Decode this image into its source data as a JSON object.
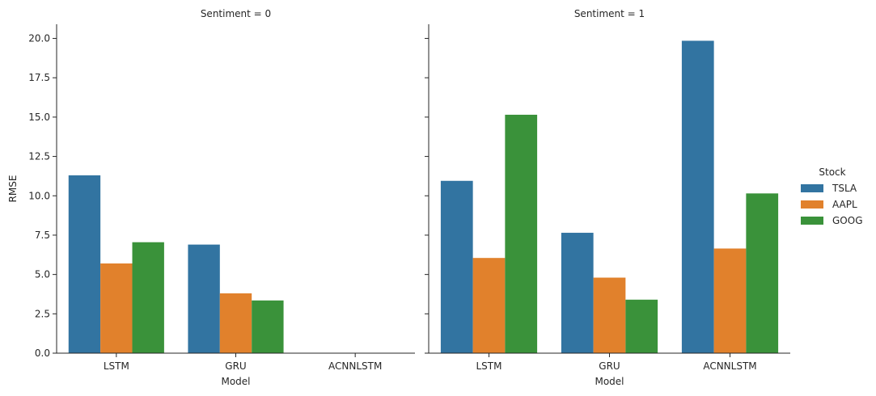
{
  "chart_data": {
    "type": "bar",
    "ylabel": "RMSE",
    "ylim": [
      0,
      20.9
    ],
    "yticks": [
      "0.0",
      "2.5",
      "5.0",
      "7.5",
      "10.0",
      "12.5",
      "15.0",
      "17.5",
      "20.0"
    ],
    "ytick_values": [
      0,
      2.5,
      5,
      7.5,
      10,
      12.5,
      15,
      17.5,
      20
    ],
    "legend": {
      "title": "Stock",
      "placement": "right",
      "entries": [
        "TSLA",
        "AAPL",
        "GOOG"
      ]
    },
    "colors": [
      "#3274a1",
      "#e1812c",
      "#3a923a"
    ],
    "panels": [
      {
        "title": "Sentiment = 0",
        "xlabel": "Model",
        "categories": [
          "LSTM",
          "GRU",
          "ACNNLSTM"
        ],
        "series": [
          {
            "name": "TSLA",
            "values": [
              11.3,
              6.9,
              0
            ]
          },
          {
            "name": "AAPL",
            "values": [
              5.7,
              3.8,
              0
            ]
          },
          {
            "name": "GOOG",
            "values": [
              7.05,
              3.35,
              0
            ]
          }
        ]
      },
      {
        "title": "Sentiment = 1",
        "xlabel": "Model",
        "categories": [
          "LSTM",
          "GRU",
          "ACNNLSTM"
        ],
        "series": [
          {
            "name": "TSLA",
            "values": [
              10.95,
              7.65,
              19.85
            ]
          },
          {
            "name": "AAPL",
            "values": [
              6.05,
              4.8,
              6.65
            ]
          },
          {
            "name": "GOOG",
            "values": [
              15.15,
              3.4,
              10.15
            ]
          }
        ]
      }
    ]
  }
}
